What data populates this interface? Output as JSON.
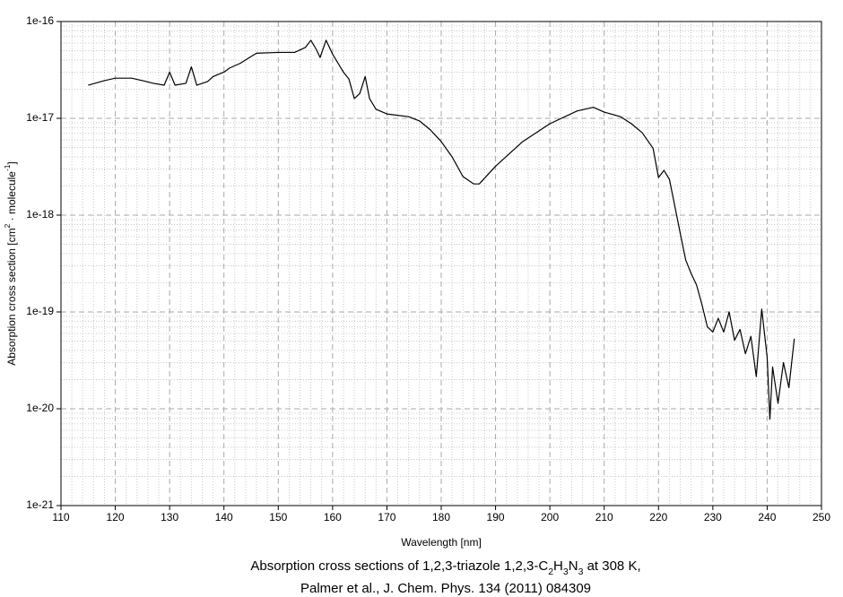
{
  "chart_data": {
    "type": "line",
    "xlabel": "Wavelength [nm]",
    "ylabel": [
      "Absorption cross section [cm",
      "2",
      " · molecule",
      "-1",
      "]"
    ],
    "caption": [
      "Absorption cross sections of 1,2,3-triazole 1,2,3-C",
      "2",
      "H",
      "3",
      "N",
      "3",
      " at 308 K,"
    ],
    "caption2": "Palmer et al., J. Chem. Phys. 134 (2011) 084309",
    "xlim": [
      110,
      250
    ],
    "xticks": [
      110,
      120,
      130,
      140,
      150,
      160,
      170,
      180,
      190,
      200,
      210,
      220,
      230,
      240,
      250
    ],
    "ylim": [
      1e-21,
      1e-16
    ],
    "yticks": [
      1e-21,
      1e-20,
      1e-19,
      1e-18,
      1e-17,
      1e-16
    ],
    "ylog": true,
    "grid": true,
    "minor_grid": true,
    "color": "#000000",
    "x": [
      115,
      118,
      120,
      123,
      125,
      127,
      129,
      130,
      131,
      133,
      134,
      135,
      137,
      138,
      140,
      141,
      143,
      145,
      146,
      150,
      153,
      155,
      156,
      157,
      157.7,
      158.8,
      160,
      162,
      163,
      164,
      165,
      166,
      166.8,
      168,
      170,
      174,
      176,
      178,
      180,
      182,
      184,
      186,
      187,
      190,
      195,
      200,
      205,
      208,
      210,
      213,
      215,
      217,
      219,
      220,
      221,
      222,
      223,
      224,
      225,
      226,
      227,
      228,
      229,
      230,
      231,
      232,
      233,
      234,
      235,
      236,
      237,
      238,
      239,
      240,
      240.5,
      241,
      242,
      243,
      244,
      245
    ],
    "values": [
      2.2e-17,
      2.45e-17,
      2.6e-17,
      2.6e-17,
      2.45e-17,
      2.3e-17,
      2.2e-17,
      3e-17,
      2.2e-17,
      2.3e-17,
      3.4e-17,
      2.2e-17,
      2.4e-17,
      2.7e-17,
      3e-17,
      3.3e-17,
      3.7e-17,
      4.35e-17,
      4.7e-17,
      4.8e-17,
      4.8e-17,
      5.4e-17,
      6.4e-17,
      5.15e-17,
      4.25e-17,
      6.4e-17,
      4.6e-17,
      3e-17,
      2.55e-17,
      1.6e-17,
      1.8e-17,
      2.7e-17,
      1.6e-17,
      1.24e-17,
      1.11e-17,
      1.04e-17,
      9.4e-18,
      7.6e-18,
      5.75e-18,
      4e-18,
      2.5e-18,
      2.1e-18,
      2.1e-18,
      3.2e-18,
      5.75e-18,
      8.8e-18,
      1.19e-17,
      1.3e-17,
      1.16e-17,
      1.04e-17,
      8.8e-18,
      7.1e-18,
      4.9e-18,
      2.45e-18,
      2.9e-18,
      2.35e-18,
      1.24e-18,
      6.5e-19,
      3.45e-19,
      2.5e-19,
      1.9e-19,
      1.19e-19,
      7e-20,
      6.2e-20,
      8.6e-20,
      6.2e-20,
      1e-19,
      5.1e-20,
      6.6e-20,
      3.7e-20,
      5.6e-20,
      2.15e-20,
      1.07e-19,
      3.4e-20,
      7.8e-21,
      2.7e-20,
      1.14e-20,
      3e-20,
      1.65e-20,
      5.3e-20
    ]
  }
}
